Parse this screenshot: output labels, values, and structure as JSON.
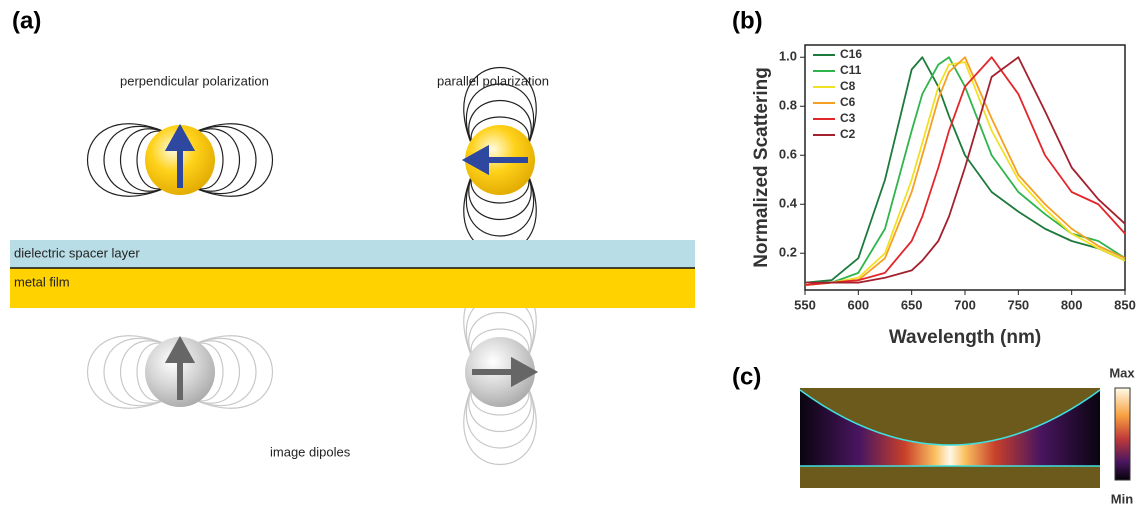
{
  "panels": {
    "a": "(a)",
    "b": "(b)",
    "c": "(c)"
  },
  "diagram": {
    "perpendicular": "perpendicular polarization",
    "parallel": "parallel polarization",
    "spacer": "dielectric spacer layer",
    "metal": "metal film",
    "image": "image dipoles"
  },
  "colorbar": {
    "max": "Max",
    "min": "Min"
  },
  "chart_data": {
    "type": "line",
    "x_label": "Wavelength (nm)",
    "y_label": "Normalized Scattering",
    "x": [
      550,
      575,
      600,
      625,
      650,
      660,
      675,
      685,
      700,
      725,
      750,
      775,
      800,
      825,
      850
    ],
    "series": [
      {
        "name": "C16",
        "color": "#1d7a3c",
        "values": [
          0.08,
          0.09,
          0.18,
          0.5,
          0.95,
          1.0,
          0.88,
          0.76,
          0.6,
          0.45,
          0.37,
          0.3,
          0.25,
          0.22,
          0.17
        ]
      },
      {
        "name": "C11",
        "color": "#2fb54c",
        "values": [
          0.08,
          0.08,
          0.12,
          0.3,
          0.7,
          0.85,
          0.97,
          1.0,
          0.88,
          0.6,
          0.45,
          0.36,
          0.28,
          0.25,
          0.18
        ]
      },
      {
        "name": "C8",
        "color": "#f2e024",
        "values": [
          0.07,
          0.08,
          0.1,
          0.2,
          0.5,
          0.65,
          0.88,
          0.97,
          0.98,
          0.7,
          0.5,
          0.38,
          0.28,
          0.22,
          0.17
        ]
      },
      {
        "name": "C6",
        "color": "#f5a023",
        "values": [
          0.07,
          0.08,
          0.09,
          0.18,
          0.45,
          0.6,
          0.83,
          0.94,
          1.0,
          0.75,
          0.52,
          0.4,
          0.3,
          0.23,
          0.18
        ]
      },
      {
        "name": "C3",
        "color": "#e3262a",
        "values": [
          0.07,
          0.08,
          0.09,
          0.12,
          0.25,
          0.35,
          0.55,
          0.7,
          0.88,
          1.0,
          0.85,
          0.6,
          0.45,
          0.4,
          0.28
        ]
      },
      {
        "name": "C2",
        "color": "#a3202e",
        "values": [
          0.08,
          0.08,
          0.08,
          0.1,
          0.13,
          0.17,
          0.25,
          0.35,
          0.55,
          0.92,
          1.0,
          0.78,
          0.55,
          0.42,
          0.32
        ]
      }
    ],
    "xlim": [
      550,
      850
    ],
    "xticks": [
      550,
      600,
      650,
      700,
      750,
      800,
      850
    ],
    "ylim": [
      0.05,
      1.05
    ],
    "yticks": [
      0.2,
      0.4,
      0.6,
      0.8,
      {
        "value": 1,
        "label": "1.0"
      }
    ],
    "legend": "upper-left",
    "grid": false
  }
}
